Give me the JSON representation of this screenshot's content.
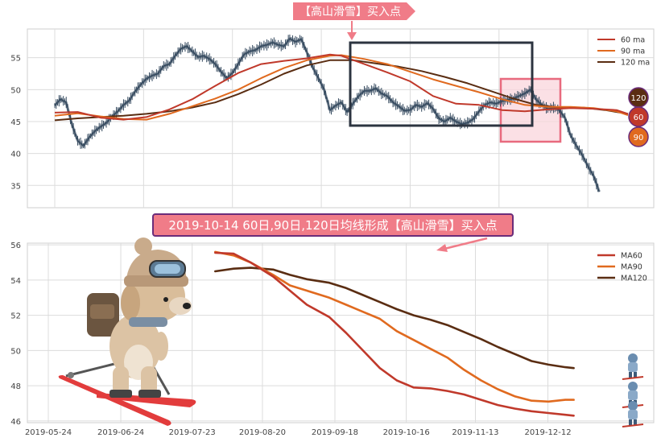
{
  "top_banner": {
    "text": "【高山滑雪】买入点",
    "bg": "#f07c88",
    "fg": "#ffffff"
  },
  "mid_banner": {
    "text": "2019-10-14 60日,90日,120日均线形成【高山滑雪】买入点",
    "bg": "#f07c88",
    "border": "#6b2c7a",
    "fg": "#ffffff"
  },
  "colors": {
    "ma60": "#c0392b",
    "ma90": "#e06a1f",
    "ma120": "#5a2d12",
    "price": "#34495e",
    "grid": "#dcdcdc",
    "box_dark": "#2c3440",
    "box_pink_fill": "#f9d6dc",
    "box_pink_edge": "#e86a7e"
  },
  "icons": {
    "top_arrow": "down-arrow-icon",
    "mid_arrow": "pointer-arrow-icon",
    "dog": "skiing-dog-icon",
    "skier": "skier-figure-icon"
  },
  "chart_data": [
    {
      "type": "line",
      "title": "",
      "ylim": [
        31.5,
        59.5
      ],
      "y_ticks": [
        "35",
        "40",
        "45",
        "50",
        "55"
      ],
      "y_tick_values": [
        35,
        40,
        45,
        50,
        55
      ],
      "grid": true,
      "legend_position": "top-right",
      "x_range": [
        0,
        1
      ],
      "series": [
        {
          "name": "60 ma",
          "color_key": "ma60",
          "points": [
            [
              0.0,
              46.4
            ],
            [
              0.04,
              46.5
            ],
            [
              0.08,
              45.6
            ],
            [
              0.12,
              45.3
            ],
            [
              0.16,
              45.7
            ],
            [
              0.2,
              46.9
            ],
            [
              0.24,
              48.5
            ],
            [
              0.28,
              50.6
            ],
            [
              0.32,
              52.6
            ],
            [
              0.36,
              54.0
            ],
            [
              0.4,
              54.5
            ],
            [
              0.44,
              54.9
            ],
            [
              0.48,
              55.5
            ],
            [
              0.5,
              55.3
            ],
            [
              0.54,
              54.0
            ],
            [
              0.58,
              52.7
            ],
            [
              0.62,
              51.3
            ],
            [
              0.66,
              49.0
            ],
            [
              0.7,
              47.8
            ],
            [
              0.74,
              47.6
            ],
            [
              0.78,
              46.8
            ],
            [
              0.82,
              46.6
            ],
            [
              0.86,
              46.9
            ],
            [
              0.9,
              47.1
            ],
            [
              0.94,
              47.0
            ],
            [
              0.98,
              46.8
            ],
            [
              1.0,
              46.2
            ]
          ]
        },
        {
          "name": "90 ma",
          "color_key": "ma90",
          "points": [
            [
              0.0,
              45.9
            ],
            [
              0.04,
              46.3
            ],
            [
              0.08,
              45.8
            ],
            [
              0.12,
              45.4
            ],
            [
              0.16,
              45.3
            ],
            [
              0.2,
              46.2
            ],
            [
              0.24,
              47.4
            ],
            [
              0.28,
              48.6
            ],
            [
              0.32,
              50.0
            ],
            [
              0.36,
              51.8
            ],
            [
              0.4,
              53.4
            ],
            [
              0.44,
              54.6
            ],
            [
              0.48,
              55.3
            ],
            [
              0.5,
              55.4
            ],
            [
              0.54,
              54.8
            ],
            [
              0.58,
              54.0
            ],
            [
              0.62,
              52.8
            ],
            [
              0.66,
              51.6
            ],
            [
              0.7,
              50.6
            ],
            [
              0.74,
              49.6
            ],
            [
              0.78,
              48.5
            ],
            [
              0.82,
              47.6
            ],
            [
              0.86,
              47.3
            ],
            [
              0.9,
              47.3
            ],
            [
              0.94,
              47.1
            ],
            [
              0.98,
              46.6
            ],
            [
              1.0,
              46.0
            ]
          ]
        },
        {
          "name": "120 ma",
          "color_key": "ma120",
          "points": [
            [
              0.0,
              45.2
            ],
            [
              0.04,
              45.5
            ],
            [
              0.08,
              45.7
            ],
            [
              0.12,
              45.9
            ],
            [
              0.16,
              46.2
            ],
            [
              0.2,
              46.6
            ],
            [
              0.24,
              47.2
            ],
            [
              0.28,
              48.0
            ],
            [
              0.32,
              49.3
            ],
            [
              0.36,
              50.8
            ],
            [
              0.4,
              52.5
            ],
            [
              0.44,
              53.8
            ],
            [
              0.48,
              54.6
            ],
            [
              0.52,
              54.6
            ],
            [
              0.56,
              54.1
            ],
            [
              0.6,
              53.6
            ],
            [
              0.64,
              52.9
            ],
            [
              0.68,
              52.0
            ],
            [
              0.72,
              51.0
            ],
            [
              0.76,
              49.8
            ],
            [
              0.8,
              48.6
            ],
            [
              0.84,
              47.6
            ],
            [
              0.88,
              47.2
            ],
            [
              0.92,
              47.2
            ],
            [
              0.96,
              46.8
            ],
            [
              1.0,
              46.2
            ]
          ]
        },
        {
          "name": "",
          "color_key": "price",
          "points": [
            [
              0.0,
              47.5
            ],
            [
              0.01,
              48.5
            ],
            [
              0.02,
              48.0
            ],
            [
              0.03,
              44.5
            ],
            [
              0.04,
              42.0
            ],
            [
              0.05,
              41.2
            ],
            [
              0.06,
              42.5
            ],
            [
              0.07,
              43.5
            ],
            [
              0.08,
              44.2
            ],
            [
              0.09,
              44.8
            ],
            [
              0.1,
              45.8
            ],
            [
              0.11,
              46.6
            ],
            [
              0.12,
              47.6
            ],
            [
              0.13,
              48.3
            ],
            [
              0.14,
              49.7
            ],
            [
              0.15,
              50.8
            ],
            [
              0.16,
              51.7
            ],
            [
              0.17,
              52.2
            ],
            [
              0.18,
              52.5
            ],
            [
              0.19,
              53.7
            ],
            [
              0.2,
              54.0
            ],
            [
              0.21,
              55.3
            ],
            [
              0.22,
              56.4
            ],
            [
              0.23,
              56.8
            ],
            [
              0.24,
              56.0
            ],
            [
              0.25,
              55.1
            ],
            [
              0.26,
              55.3
            ],
            [
              0.27,
              54.8
            ],
            [
              0.28,
              54.0
            ],
            [
              0.29,
              52.8
            ],
            [
              0.3,
              51.8
            ],
            [
              0.31,
              52.6
            ],
            [
              0.32,
              54.0
            ],
            [
              0.33,
              55.5
            ],
            [
              0.34,
              56.0
            ],
            [
              0.35,
              56.2
            ],
            [
              0.36,
              56.8
            ],
            [
              0.37,
              57.0
            ],
            [
              0.38,
              57.4
            ],
            [
              0.39,
              57.0
            ],
            [
              0.4,
              56.8
            ],
            [
              0.41,
              58.0
            ],
            [
              0.42,
              57.5
            ],
            [
              0.43,
              57.9
            ],
            [
              0.44,
              55.8
            ],
            [
              0.45,
              53.5
            ],
            [
              0.46,
              51.8
            ],
            [
              0.47,
              50.0
            ],
            [
              0.48,
              46.8
            ],
            [
              0.49,
              47.5
            ],
            [
              0.5,
              48.0
            ],
            [
              0.51,
              46.5
            ],
            [
              0.52,
              47.8
            ],
            [
              0.53,
              49.0
            ],
            [
              0.54,
              49.8
            ],
            [
              0.55,
              49.8
            ],
            [
              0.56,
              50.2
            ],
            [
              0.57,
              49.4
            ],
            [
              0.58,
              49.0
            ],
            [
              0.59,
              48.0
            ],
            [
              0.6,
              47.4
            ],
            [
              0.61,
              46.7
            ],
            [
              0.62,
              46.8
            ],
            [
              0.63,
              47.6
            ],
            [
              0.64,
              47.3
            ],
            [
              0.65,
              47.9
            ],
            [
              0.66,
              47.0
            ],
            [
              0.67,
              45.5
            ],
            [
              0.68,
              45.0
            ],
            [
              0.69,
              45.6
            ],
            [
              0.7,
              45.0
            ],
            [
              0.71,
              44.6
            ],
            [
              0.72,
              44.8
            ],
            [
              0.73,
              45.4
            ],
            [
              0.74,
              46.6
            ],
            [
              0.75,
              47.6
            ],
            [
              0.76,
              48.0
            ],
            [
              0.77,
              47.8
            ],
            [
              0.78,
              48.2
            ],
            [
              0.79,
              48.4
            ],
            [
              0.8,
              48.6
            ],
            [
              0.81,
              49.0
            ],
            [
              0.82,
              49.4
            ],
            [
              0.83,
              50.0
            ],
            [
              0.84,
              48.4
            ],
            [
              0.85,
              47.6
            ],
            [
              0.86,
              47.0
            ],
            [
              0.87,
              47.2
            ],
            [
              0.88,
              46.8
            ],
            [
              0.89,
              45.6
            ],
            [
              0.9,
              42.8
            ],
            [
              0.91,
              41.2
            ],
            [
              0.92,
              39.8
            ],
            [
              0.93,
              38.0
            ],
            [
              0.94,
              36.5
            ],
            [
              0.95,
              34.0
            ]
          ]
        }
      ]
    },
    {
      "type": "line",
      "title": "",
      "ylim": [
        45.9,
        56.1
      ],
      "y_ticks": [
        "46",
        "48",
        "50",
        "52",
        "54",
        "56"
      ],
      "y_tick_values": [
        46,
        48,
        50,
        52,
        54,
        56
      ],
      "x_ticks": [
        "2019-05-24",
        "2019-06-24",
        "2019-07-23",
        "2019-08-20",
        "2019-09-18",
        "2019-10-16",
        "2019-11-13",
        "2019-12-12"
      ],
      "x_tick_values": [
        0.0,
        0.129,
        0.256,
        0.381,
        0.51,
        0.637,
        0.76,
        0.889
      ],
      "grid": true,
      "legend_position": "top-right",
      "series": [
        {
          "name": "MA60",
          "color_key": "ma60",
          "points": [
            [
              0.297,
              55.55
            ],
            [
              0.33,
              55.5
            ],
            [
              0.36,
              55.0
            ],
            [
              0.4,
              54.2
            ],
            [
              0.43,
              53.4
            ],
            [
              0.46,
              52.6
            ],
            [
              0.5,
              51.9
            ],
            [
              0.53,
              51.0
            ],
            [
              0.56,
              50.0
            ],
            [
              0.59,
              49.0
            ],
            [
              0.62,
              48.3
            ],
            [
              0.65,
              47.9
            ],
            [
              0.68,
              47.85
            ],
            [
              0.71,
              47.7
            ],
            [
              0.74,
              47.5
            ],
            [
              0.77,
              47.2
            ],
            [
              0.8,
              46.9
            ],
            [
              0.83,
              46.7
            ],
            [
              0.86,
              46.55
            ],
            [
              0.89,
              46.45
            ],
            [
              0.92,
              46.35
            ],
            [
              0.935,
              46.3
            ]
          ]
        },
        {
          "name": "MA90",
          "color_key": "ma90",
          "points": [
            [
              0.297,
              55.6
            ],
            [
              0.33,
              55.4
            ],
            [
              0.36,
              55.0
            ],
            [
              0.4,
              54.3
            ],
            [
              0.43,
              53.7
            ],
            [
              0.46,
              53.4
            ],
            [
              0.5,
              53.0
            ],
            [
              0.53,
              52.6
            ],
            [
              0.56,
              52.2
            ],
            [
              0.59,
              51.8
            ],
            [
              0.62,
              51.1
            ],
            [
              0.65,
              50.6
            ],
            [
              0.68,
              50.1
            ],
            [
              0.71,
              49.6
            ],
            [
              0.74,
              48.9
            ],
            [
              0.77,
              48.3
            ],
            [
              0.8,
              47.8
            ],
            [
              0.83,
              47.4
            ],
            [
              0.86,
              47.15
            ],
            [
              0.89,
              47.1
            ],
            [
              0.92,
              47.2
            ],
            [
              0.935,
              47.2
            ]
          ]
        },
        {
          "name": "MA120",
          "color_key": "ma120",
          "points": [
            [
              0.297,
              54.5
            ],
            [
              0.33,
              54.65
            ],
            [
              0.36,
              54.7
            ],
            [
              0.4,
              54.6
            ],
            [
              0.43,
              54.3
            ],
            [
              0.46,
              54.05
            ],
            [
              0.5,
              53.85
            ],
            [
              0.53,
              53.55
            ],
            [
              0.56,
              53.15
            ],
            [
              0.59,
              52.75
            ],
            [
              0.62,
              52.35
            ],
            [
              0.65,
              52.0
            ],
            [
              0.68,
              51.75
            ],
            [
              0.71,
              51.45
            ],
            [
              0.74,
              51.05
            ],
            [
              0.77,
              50.65
            ],
            [
              0.8,
              50.2
            ],
            [
              0.83,
              49.8
            ],
            [
              0.86,
              49.4
            ],
            [
              0.89,
              49.2
            ],
            [
              0.92,
              49.05
            ],
            [
              0.935,
              49.0
            ]
          ]
        }
      ]
    }
  ],
  "badges": [
    {
      "label": "120",
      "bg": "#5a2d12"
    },
    {
      "label": "60",
      "bg": "#c0392b"
    },
    {
      "label": "90",
      "bg": "#e06a1f"
    }
  ]
}
